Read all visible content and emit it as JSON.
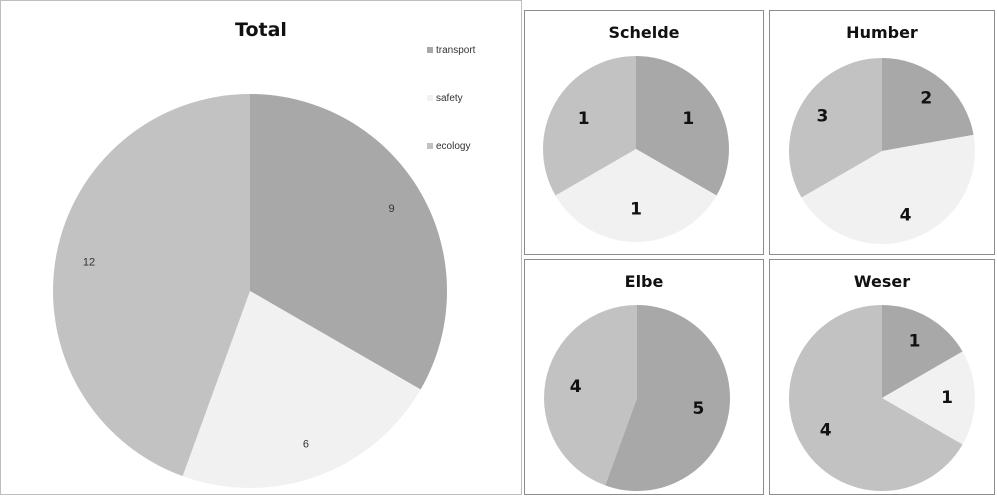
{
  "colors": {
    "transport": "#a8a8a8",
    "safety": "#f1f1f1",
    "ecology": "#c2c2c2"
  },
  "legend": [
    "transport",
    "safety",
    "ecology"
  ],
  "chart_data": [
    {
      "type": "pie",
      "title": "Total",
      "categories": [
        "transport",
        "safety",
        "ecology"
      ],
      "values": [
        9,
        6,
        12
      ]
    },
    {
      "type": "pie",
      "title": "Schelde",
      "categories": [
        "transport",
        "safety",
        "ecology"
      ],
      "values": [
        1,
        1,
        1
      ]
    },
    {
      "type": "pie",
      "title": "Humber",
      "categories": [
        "transport",
        "safety",
        "ecology"
      ],
      "values": [
        2,
        4,
        3
      ]
    },
    {
      "type": "pie",
      "title": "Elbe",
      "categories": [
        "transport",
        "safety",
        "ecology"
      ],
      "values": [
        5,
        0,
        4
      ]
    },
    {
      "type": "pie",
      "title": "Weser",
      "categories": [
        "transport",
        "safety",
        "ecology"
      ],
      "values": [
        1,
        1,
        4
      ]
    }
  ]
}
